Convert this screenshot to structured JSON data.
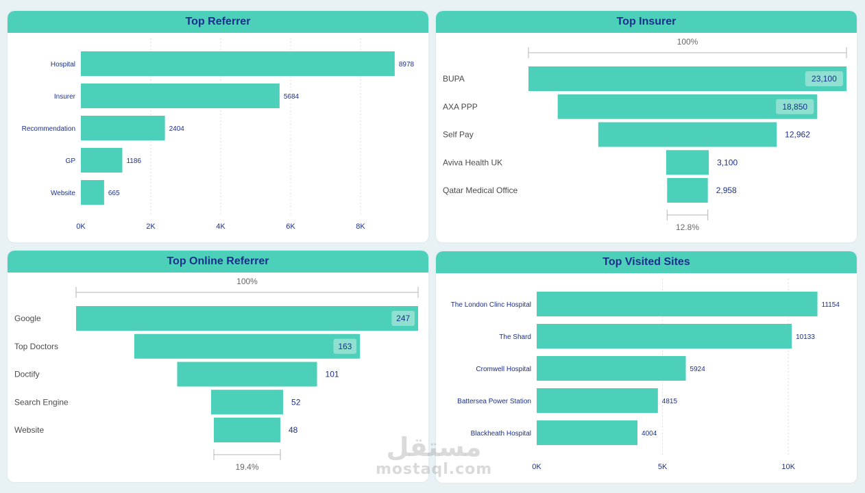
{
  "theme": {
    "bar": "#4dd0b9",
    "title": "#1a2f8c",
    "label": "#1a2f8c",
    "funnel_label": "#4a4a4a",
    "grid": "#dcdcdc",
    "bg": "#e8f2f5"
  },
  "chart_data": [
    {
      "id": "top-referrer",
      "type": "bar",
      "orientation": "horizontal",
      "title": "Top Referrer",
      "categories": [
        "Hospital",
        "Insurer",
        "Recommendation",
        "GP",
        "Website"
      ],
      "values": [
        8978,
        5684,
        2404,
        1186,
        665
      ],
      "value_labels": [
        "8978",
        "5684",
        "2404",
        "1186",
        "665"
      ],
      "xlim": [
        0,
        10000
      ],
      "ticks": [
        0,
        2000,
        4000,
        6000,
        8000
      ],
      "tick_labels": [
        "0K",
        "2K",
        "4K",
        "6K",
        "8K"
      ],
      "grid": true
    },
    {
      "id": "top-insurer",
      "type": "funnel",
      "title": "Top Insurer",
      "categories": [
        "BUPA",
        "AXA PPP",
        "Self Pay",
        "Aviva Health UK",
        "Qatar Medical Office"
      ],
      "values": [
        23100,
        18850,
        12962,
        3100,
        2958
      ],
      "value_labels": [
        "23,100",
        "18,850",
        "12,962",
        "3,100",
        "2,958"
      ],
      "top_label": "100%",
      "bottom_label": "12.8%"
    },
    {
      "id": "top-online-referrer",
      "type": "funnel",
      "title": "Top Online Referrer",
      "categories": [
        "Google",
        "Top Doctors",
        "Doctify",
        "Search Engine",
        "Website"
      ],
      "values": [
        247,
        163,
        101,
        52,
        48
      ],
      "value_labels": [
        "247",
        "163",
        "101",
        "52",
        "48"
      ],
      "top_label": "100%",
      "bottom_label": "19.4%"
    },
    {
      "id": "top-visited-sites",
      "type": "bar",
      "orientation": "horizontal",
      "title": "Top Visited Sites",
      "categories": [
        "The London Clinc Hospital",
        "The Shard",
        "Cromwell Hospital",
        "Battersea Power Station",
        "Blackheath Hospital"
      ],
      "values": [
        11154,
        10133,
        5924,
        4815,
        4004
      ],
      "value_labels": [
        "11154",
        "10133",
        "5924",
        "4815",
        "4004"
      ],
      "xlim": [
        0,
        12500
      ],
      "ticks": [
        0,
        5000,
        10000
      ],
      "tick_labels": [
        "0K",
        "5K",
        "10K"
      ],
      "grid": true
    }
  ],
  "watermark": {
    "arabic": "مستقل",
    "latin": "mostaql.com"
  }
}
